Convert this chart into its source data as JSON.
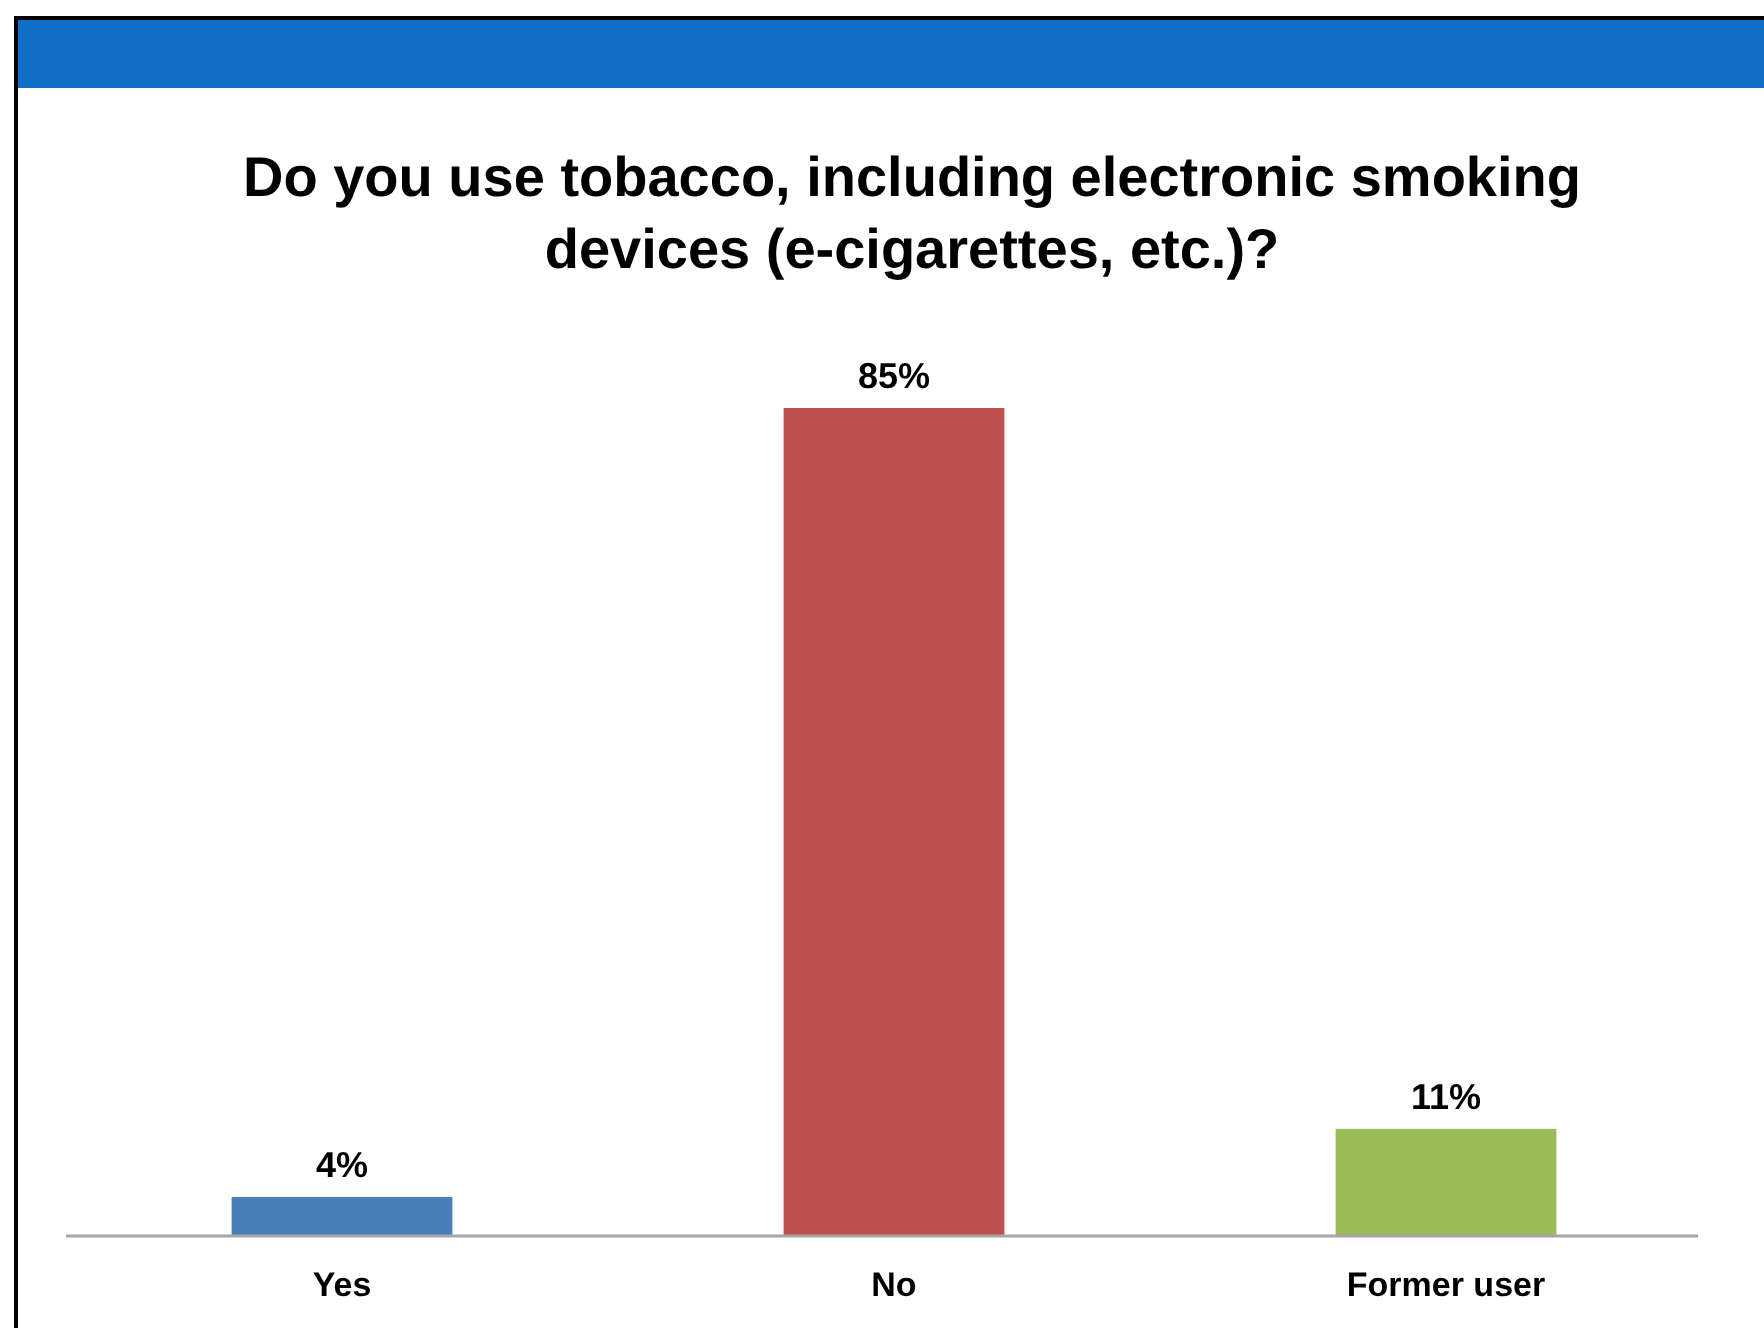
{
  "chart_data": {
    "type": "bar",
    "title": "Do you use tobacco, including electronic smoking devices (e-cigarettes, etc.)?",
    "categories": [
      "Yes",
      "No",
      "Former user"
    ],
    "values": [
      4,
      85,
      11
    ],
    "colors": [
      "#4a7ebb",
      "#c0504d",
      "#9bbb59"
    ],
    "value_labels": [
      "4%",
      "85%",
      "11%"
    ]
  }
}
